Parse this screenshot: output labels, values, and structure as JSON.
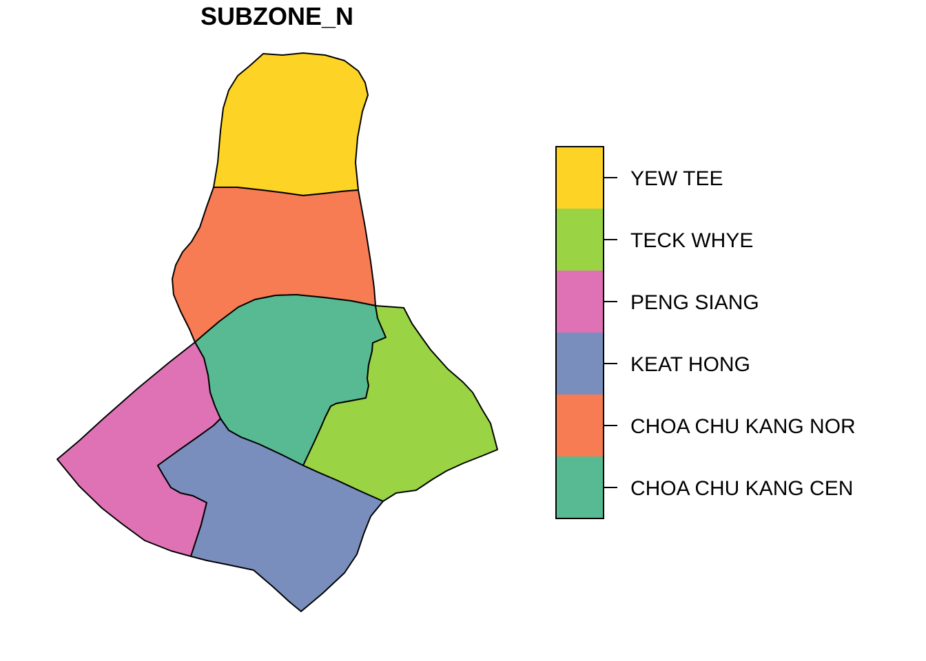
{
  "title": "SUBZONE_N",
  "regions": [
    {
      "key": "yew-tee",
      "name": "YEW TEE",
      "color": "#FDD326"
    },
    {
      "key": "teck-whye",
      "name": "TECK WHYE",
      "color": "#9AD445"
    },
    {
      "key": "peng-siang",
      "name": "PENG SIANG",
      "color": "#DF72B4"
    },
    {
      "key": "keat-hong",
      "name": "KEAT HONG",
      "color": "#7A8EBE"
    },
    {
      "key": "choa-chu-kang-nor",
      "name": "CHOA CHU KANG NOR",
      "color": "#F77B53"
    },
    {
      "key": "choa-chu-kang-cen",
      "name": "CHOA CHU KANG CEN",
      "color": "#58BA93"
    }
  ],
  "legend": {
    "items": [
      "YEW TEE",
      "TECK WHYE",
      "PENG SIANG",
      "KEAT HONG",
      "CHOA CHU KANG NOR",
      "CHOA CHU KANG CEN"
    ]
  }
}
